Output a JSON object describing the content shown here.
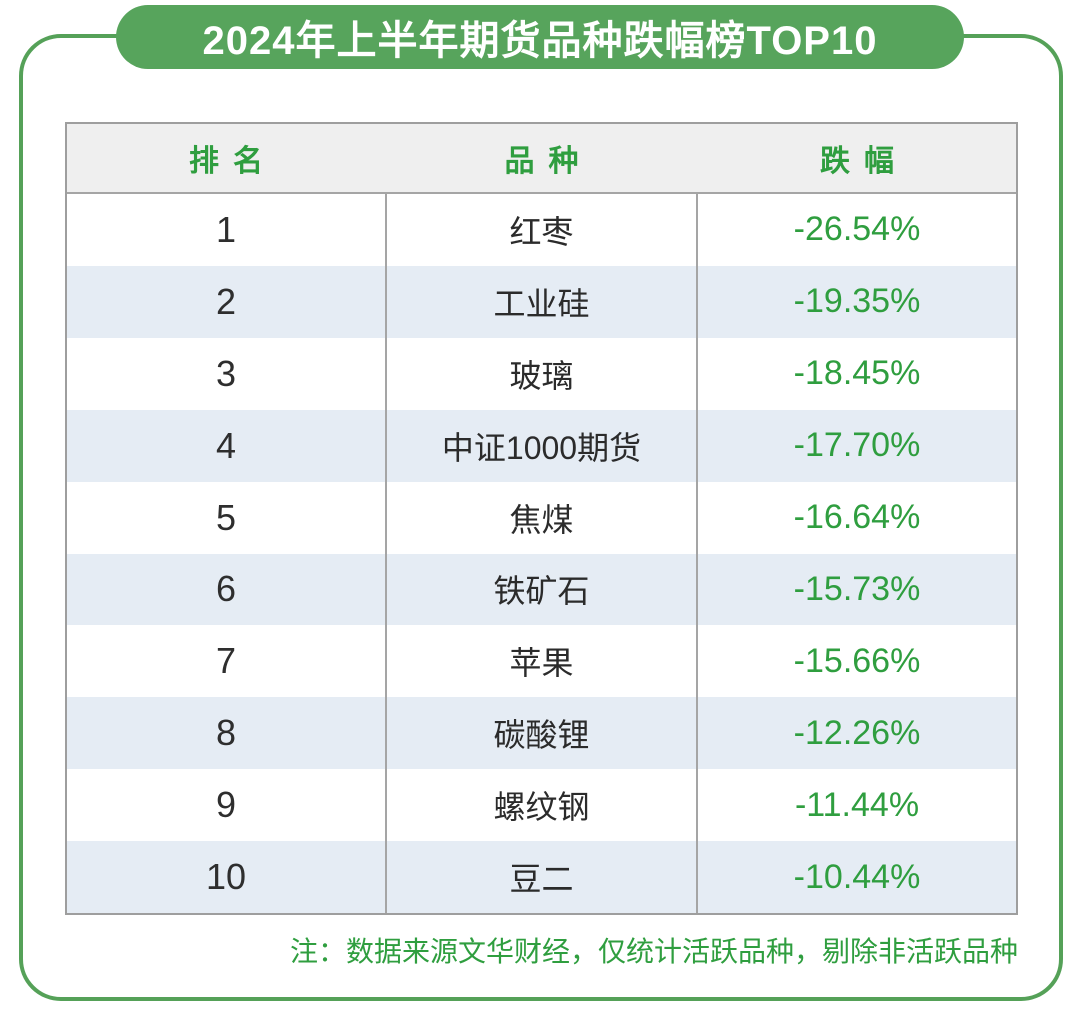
{
  "page": {
    "title": "2024年上半年期货品种跌幅榜TOP10",
    "note": "注：数据来源文华财经，仅统计活跃品种，剔除非活跃品种"
  },
  "table": {
    "headers": [
      "排名",
      "品种",
      "跌幅"
    ],
    "rows": [
      {
        "rank": "1",
        "name": "红枣",
        "change": "-26.54%"
      },
      {
        "rank": "2",
        "name": "工业硅",
        "change": "-19.35%"
      },
      {
        "rank": "3",
        "name": "玻璃",
        "change": "-18.45%"
      },
      {
        "rank": "4",
        "name": "中证1000期货",
        "change": "-17.70%"
      },
      {
        "rank": "5",
        "name": "焦煤",
        "change": "-16.64%"
      },
      {
        "rank": "6",
        "name": "铁矿石",
        "change": "-15.73%"
      },
      {
        "rank": "7",
        "name": "苹果",
        "change": "-15.66%"
      },
      {
        "rank": "8",
        "name": "碳酸锂",
        "change": "-12.26%"
      },
      {
        "rank": "9",
        "name": "螺纹钢",
        "change": "-11.44%"
      },
      {
        "rank": "10",
        "name": "豆二",
        "change": "-10.44%"
      }
    ]
  },
  "colors": {
    "banner_green": "#57a45c",
    "border_green": "#55a158",
    "accent_text_green": "#2f9e3f",
    "header_row_gray": "#efefef",
    "alt_row_blue": "#e5ecf4",
    "grid_line_gray": "#a5a5a5",
    "body_text_dark": "#2b2b2b"
  },
  "chart_data": {
    "type": "table",
    "title": "2024年上半年期货品种跌幅榜TOP10",
    "columns": [
      "排名",
      "品种",
      "跌幅"
    ],
    "categories": [
      "红枣",
      "工业硅",
      "玻璃",
      "中证1000期货",
      "焦煤",
      "铁矿石",
      "苹果",
      "碳酸锂",
      "螺纹钢",
      "豆二"
    ],
    "values_pct": [
      -26.54,
      -19.35,
      -18.45,
      -17.7,
      -16.64,
      -15.73,
      -15.66,
      -12.26,
      -11.44,
      -10.44
    ],
    "note": "注：数据来源文华财经，仅统计活跃品种，剔除非活跃品种",
    "layout": {
      "rows": 10,
      "alternating_row_shading": true,
      "value_color": "green"
    }
  }
}
